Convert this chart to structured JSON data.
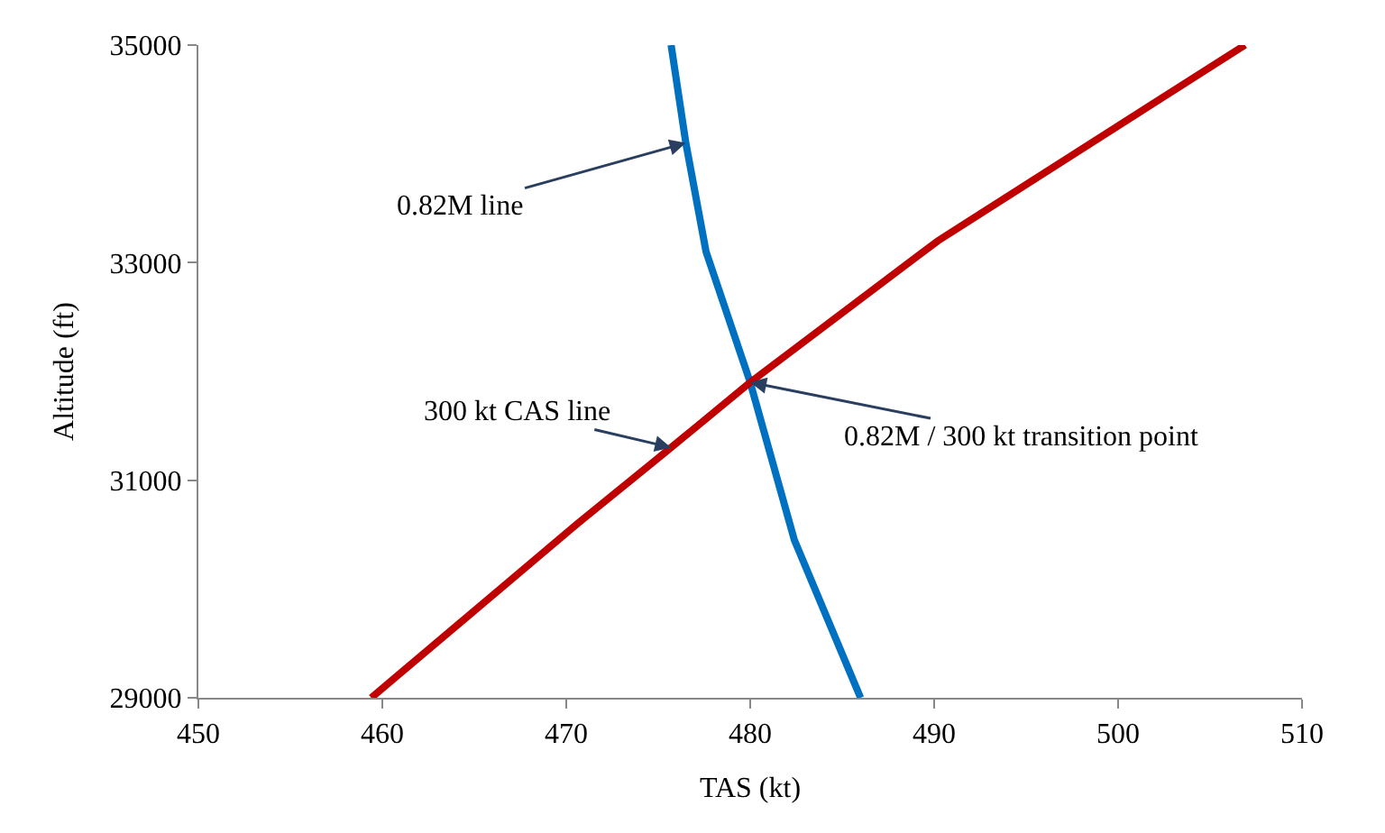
{
  "chart_data": {
    "type": "line",
    "xlabel": "TAS (kt)",
    "ylabel": "Altitude (ft)",
    "series": [
      {
        "color": "#0070c0",
        "x": [
          475.7,
          476.5,
          477.6,
          480.0,
          482.4,
          486.0
        ],
        "values": [
          35000,
          34100,
          33100,
          31900,
          30450,
          29000
        ]
      },
      {
        "color": "#c00000",
        "x": [
          459.4,
          470.6,
          475.7,
          480.0,
          490.2,
          506.9
        ],
        "values": [
          29000,
          30600,
          31300,
          31900,
          33200,
          35000
        ]
      }
    ],
    "xlim": [
      450,
      510
    ],
    "xticks": [
      450,
      460,
      470,
      480,
      490,
      500,
      510
    ],
    "ylim": [
      29000,
      35000
    ],
    "yticks": [
      29000,
      31000,
      33000,
      35000
    ],
    "legend": false,
    "marker": "none",
    "line_style": "solid",
    "annotations": [
      {
        "text": "0.82M line",
        "x": 476.5,
        "y": 34100
      },
      {
        "text": "300 kt CAS line",
        "x": 475.7,
        "y": 31300
      },
      {
        "text": "0.82M / 300 kt transition point",
        "x": 480.0,
        "y": 31900
      }
    ]
  }
}
